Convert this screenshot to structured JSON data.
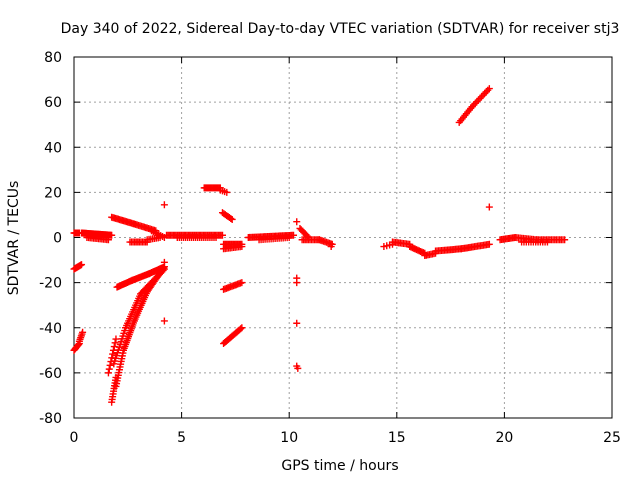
{
  "chart_data": {
    "type": "scatter",
    "title": "Day 340 of 2022, Sidereal Day-to-day VTEC variation (SDTVAR) for receiver stj3",
    "xlabel": "GPS time / hours",
    "ylabel": "SDTVAR / TECUs",
    "xlim": [
      0,
      25
    ],
    "ylim": [
      -80,
      80
    ],
    "xticks": [
      0,
      5,
      10,
      15,
      20,
      25
    ],
    "yticks": [
      -80,
      -60,
      -40,
      -20,
      0,
      20,
      40,
      60,
      80
    ],
    "grid": true,
    "marker": "+",
    "marker_color": "#ff0000",
    "segments": [
      {
        "x0": 0.0,
        "x1": 0.25,
        "y0": -50,
        "y1": -47,
        "n": 8
      },
      {
        "x0": 0.25,
        "x1": 0.4,
        "y0": -46,
        "y1": -42,
        "n": 6
      },
      {
        "x0": 0.0,
        "x1": 0.35,
        "y0": -14,
        "y1": -12,
        "n": 10
      },
      {
        "x0": 0.0,
        "x1": 0.25,
        "y0": 2,
        "y1": 2,
        "n": 8
      },
      {
        "x0": 0.35,
        "x1": 1.75,
        "y0": 2,
        "y1": 1,
        "n": 36
      },
      {
        "x0": 0.6,
        "x1": 1.6,
        "y0": 0,
        "y1": -1,
        "n": 14
      },
      {
        "x0": 1.6,
        "x1": 1.95,
        "y0": -60,
        "y1": -45,
        "n": 10
      },
      {
        "x0": 1.75,
        "x1": 1.95,
        "y0": -73,
        "y1": -62,
        "n": 10
      },
      {
        "x0": 1.95,
        "x1": 2.3,
        "y0": -66,
        "y1": -50,
        "n": 14
      },
      {
        "x0": 2.3,
        "x1": 2.8,
        "y0": -50,
        "y1": -37,
        "n": 16
      },
      {
        "x0": 2.8,
        "x1": 3.4,
        "y0": -37,
        "y1": -24,
        "n": 16
      },
      {
        "x0": 3.4,
        "x1": 4.2,
        "y0": -24,
        "y1": -13,
        "n": 18
      },
      {
        "x0": 1.85,
        "x1": 2.4,
        "y0": -56,
        "y1": -40,
        "n": 14
      },
      {
        "x0": 2.4,
        "x1": 3.1,
        "y0": -40,
        "y1": -25,
        "n": 16
      },
      {
        "x0": 3.1,
        "x1": 4.2,
        "y0": -25,
        "y1": -14,
        "n": 20
      },
      {
        "x0": 2.0,
        "x1": 2.7,
        "y0": -22,
        "y1": -19,
        "n": 14
      },
      {
        "x0": 2.7,
        "x1": 3.5,
        "y0": -19,
        "y1": -16,
        "n": 16
      },
      {
        "x0": 3.5,
        "x1": 4.2,
        "y0": -16,
        "y1": -13,
        "n": 14
      },
      {
        "x0": 1.75,
        "x1": 2.8,
        "y0": 9,
        "y1": 6,
        "n": 18
      },
      {
        "x0": 2.8,
        "x1": 3.8,
        "y0": 6,
        "y1": 3,
        "n": 16
      },
      {
        "x0": 3.6,
        "x1": 4.2,
        "y0": 3,
        "y1": 0,
        "n": 8
      },
      {
        "x0": 2.6,
        "x1": 3.4,
        "y0": -2,
        "y1": -2,
        "n": 12
      },
      {
        "x0": 3.4,
        "x1": 4.0,
        "y0": -1,
        "y1": 0,
        "n": 8
      },
      {
        "x0": 4.3,
        "x1": 6.9,
        "y0": 1,
        "y1": 1,
        "n": 42
      },
      {
        "x0": 4.8,
        "x1": 6.6,
        "y0": 0,
        "y1": 0,
        "n": 20
      },
      {
        "x0": 6.05,
        "x1": 6.8,
        "y0": 22,
        "y1": 22,
        "n": 16
      },
      {
        "x0": 6.8,
        "x1": 7.1,
        "y0": 21,
        "y1": 20,
        "n": 4
      },
      {
        "x0": 6.9,
        "x1": 7.35,
        "y0": 11,
        "y1": 8,
        "n": 8
      },
      {
        "x0": 6.95,
        "x1": 7.8,
        "y0": -3,
        "y1": -3,
        "n": 16
      },
      {
        "x0": 6.95,
        "x1": 7.8,
        "y0": -5,
        "y1": -4,
        "n": 12
      },
      {
        "x0": 6.95,
        "x1": 7.8,
        "y0": -23,
        "y1": -20,
        "n": 14
      },
      {
        "x0": 6.95,
        "x1": 7.8,
        "y0": -47,
        "y1": -40,
        "n": 16
      },
      {
        "x0": 8.1,
        "x1": 10.2,
        "y0": 0,
        "y1": 1,
        "n": 34
      },
      {
        "x0": 8.6,
        "x1": 10.0,
        "y0": -1,
        "y1": 0,
        "n": 16
      },
      {
        "x0": 10.5,
        "x1": 10.9,
        "y0": 4,
        "y1": 0,
        "n": 8
      },
      {
        "x0": 10.6,
        "x1": 11.4,
        "y0": -1,
        "y1": -1,
        "n": 12
      },
      {
        "x0": 11.4,
        "x1": 12.0,
        "y0": -1,
        "y1": -3,
        "n": 10
      },
      {
        "x0": 14.4,
        "x1": 14.8,
        "y0": -4,
        "y1": -3,
        "n": 4
      },
      {
        "x0": 14.8,
        "x1": 15.6,
        "y0": -2,
        "y1": -3,
        "n": 12
      },
      {
        "x0": 15.6,
        "x1": 16.3,
        "y0": -4,
        "y1": -7,
        "n": 12
      },
      {
        "x0": 16.3,
        "x1": 16.8,
        "y0": -8,
        "y1": -7,
        "n": 8
      },
      {
        "x0": 16.8,
        "x1": 18.0,
        "y0": -6,
        "y1": -5,
        "n": 18
      },
      {
        "x0": 18.0,
        "x1": 19.3,
        "y0": -5,
        "y1": -3,
        "n": 20
      },
      {
        "x0": 17.9,
        "x1": 18.5,
        "y0": 51,
        "y1": 58,
        "n": 10
      },
      {
        "x0": 18.5,
        "x1": 19.3,
        "y0": 58,
        "y1": 66,
        "n": 12
      },
      {
        "x0": 19.8,
        "x1": 20.5,
        "y0": -1,
        "y1": 0,
        "n": 12
      },
      {
        "x0": 20.5,
        "x1": 21.5,
        "y0": 0,
        "y1": -1,
        "n": 14
      },
      {
        "x0": 21.5,
        "x1": 22.8,
        "y0": -1,
        "y1": -1,
        "n": 18
      },
      {
        "x0": 20.8,
        "x1": 22.0,
        "y0": -2,
        "y1": -2,
        "n": 12
      }
    ],
    "points": [
      {
        "x": 4.2,
        "y": 14.5
      },
      {
        "x": 4.2,
        "y": -11
      },
      {
        "x": 4.2,
        "y": -37
      },
      {
        "x": 10.35,
        "y": 7
      },
      {
        "x": 10.35,
        "y": -18
      },
      {
        "x": 10.35,
        "y": -20
      },
      {
        "x": 10.35,
        "y": -38
      },
      {
        "x": 10.35,
        "y": -57
      },
      {
        "x": 10.4,
        "y": -58
      },
      {
        "x": 19.3,
        "y": 13.5
      },
      {
        "x": 11.95,
        "y": -4
      }
    ]
  }
}
